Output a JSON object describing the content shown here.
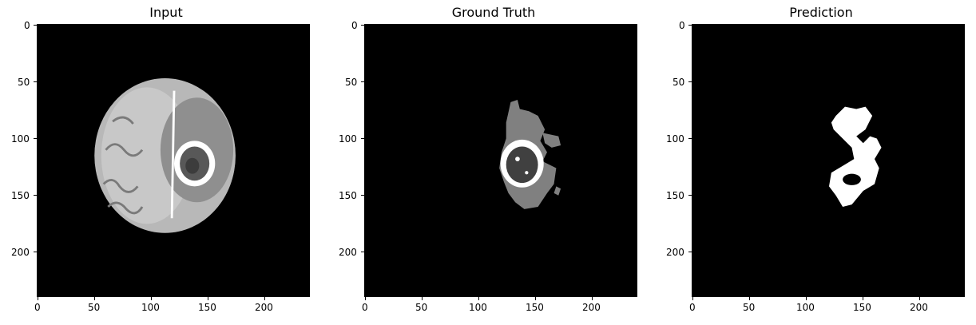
{
  "panels": [
    {
      "title": "Input"
    },
    {
      "title": "Ground Truth"
    },
    {
      "title": "Prediction"
    }
  ],
  "axes": {
    "x_ticks": [
      "0",
      "50",
      "100",
      "150",
      "200"
    ],
    "y_ticks": [
      "0",
      "50",
      "100",
      "150",
      "200"
    ],
    "x_range": [
      0,
      240
    ],
    "y_range": [
      0,
      240
    ]
  },
  "colors": {
    "background": "#000000",
    "tumor_core": "#404040",
    "edema": "#808080",
    "enhancing": "#ffffff",
    "brain_tissue": "#bdbdbd"
  }
}
